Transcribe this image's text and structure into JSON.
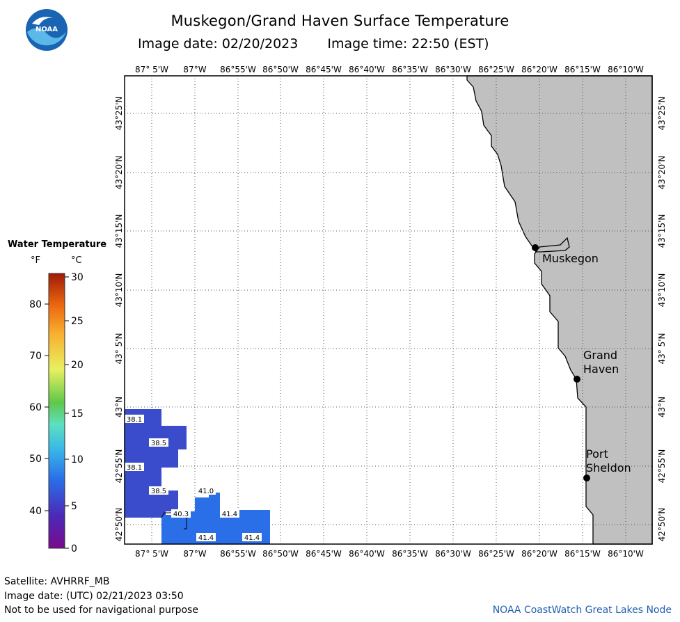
{
  "logo": {
    "text": "NOAA",
    "colors": {
      "blue": "#1a64b4",
      "sky": "#5cb8e8"
    }
  },
  "title": "Muskegon/Grand Haven Surface Temperature",
  "image_date_label": "Image date: 02/20/2023",
  "image_time_label": "Image time: 22:50 (EST)",
  "legend": {
    "title": "Water Temperature",
    "unit_f": "°F",
    "unit_c": "°C",
    "f_ticks": [
      "80",
      "70",
      "60",
      "50",
      "40"
    ],
    "c_ticks": [
      "30",
      "25",
      "20",
      "15",
      "10",
      "5",
      "0"
    ]
  },
  "map": {
    "lon_labels": [
      "87° 5'W",
      "87°W",
      "86°55'W",
      "86°50'W",
      "86°45'W",
      "86°40'W",
      "86°35'W",
      "86°30'W",
      "86°25'W",
      "86°20'W",
      "86°15'W",
      "86°10'W"
    ],
    "lat_labels": [
      "43°25'N",
      "43°20'N",
      "43°15'N",
      "43°10'N",
      "43° 5'N",
      "43°N",
      "42°55'N",
      "42°50'N"
    ],
    "places": [
      {
        "name": "Muskegon"
      },
      {
        "name": "Grand\nHaven"
      },
      {
        "name": "Port\nSheldon"
      }
    ],
    "temp_labels": [
      "38.1",
      "38.5",
      "38.1",
      "38.5",
      "41.0",
      "40.3",
      "41.4",
      "41.4",
      "41.4"
    ],
    "colors": {
      "land": "#c0c0c0",
      "water": "#ffffff",
      "grid": "#555555",
      "pixel_cold": "#3a4ccc",
      "pixel_warm": "#2a6ee8"
    }
  },
  "footer": {
    "satellite": "Satellite: AVHRRF_MB",
    "utc_date": "Image date: (UTC) 02/21/2023  03:50",
    "disclaimer": "Not to be used for navigational purpose",
    "node": "NOAA CoastWatch Great Lakes Node"
  }
}
